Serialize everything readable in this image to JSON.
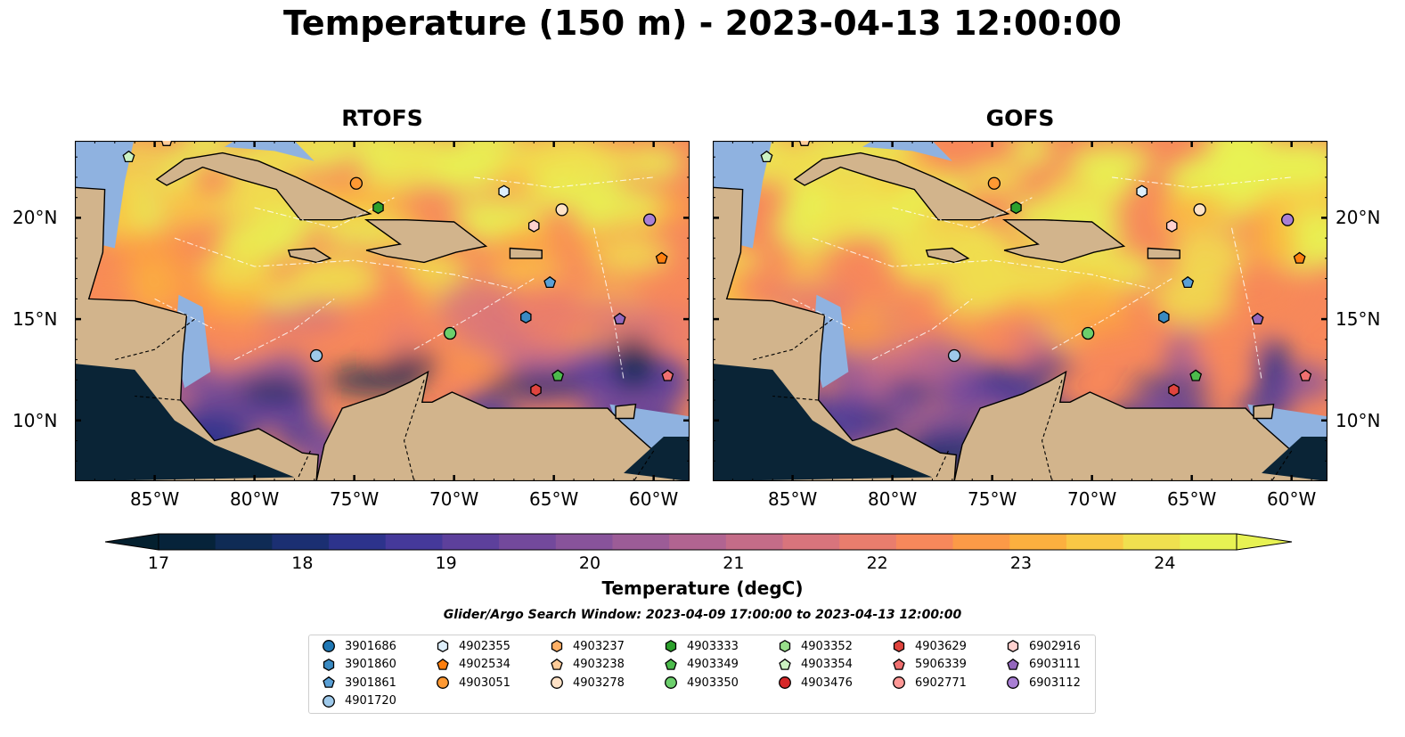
{
  "title": "Temperature (150 m) - 2023-04-13 12:00:00",
  "panels": [
    {
      "id": "rtofs",
      "title": "RTOFS",
      "tint": 0.0
    },
    {
      "id": "gofs",
      "title": "GOFS",
      "tint": 0.35
    }
  ],
  "lon_ticks": [
    "85°W",
    "80°W",
    "75°W",
    "70°W",
    "65°W",
    "60°W"
  ],
  "lon_tick_values": [
    -85,
    -80,
    -75,
    -70,
    -65,
    -60
  ],
  "lat_ticks": [
    "20°N",
    "15°N",
    "10°N"
  ],
  "lat_tick_values": [
    20,
    15,
    10
  ],
  "extent": {
    "lon_min": -89,
    "lon_max": -58.2,
    "lat_min": 7.0,
    "lat_max": 23.8
  },
  "colorbar": {
    "label": "Temperature (degC)",
    "ticks": [
      "17",
      "18",
      "19",
      "20",
      "21",
      "22",
      "23",
      "24"
    ],
    "tick_values": [
      17,
      18,
      19,
      20,
      21,
      22,
      23,
      24
    ],
    "vmin": 17,
    "vmax": 24.5,
    "step": 0.5,
    "colors": [
      "#06233a",
      "#0f2b55",
      "#1b2f72",
      "#2d338c",
      "#45399a",
      "#5d409c",
      "#73499c",
      "#88539b",
      "#9c5c97",
      "#b16491",
      "#c46c88",
      "#d8747c",
      "#e97d6d",
      "#f7885b",
      "#fc9a47",
      "#fcb03f",
      "#f9c845",
      "#f0e04f",
      "#e7f253"
    ],
    "under_color": "#04202f",
    "over_color": "#e7f253"
  },
  "search_window": "Glider/Argo Search Window: 2023-04-09 17:00:00 to 2023-04-13 12:00:00",
  "map_colors": {
    "land": "#d2b48c",
    "shelf": "#8fb2e0",
    "coast": "#000000"
  },
  "floats": [
    {
      "id": "3901686",
      "marker": "circle",
      "color": "#1f77b4",
      "lon": null,
      "lat": null
    },
    {
      "id": "3901860",
      "marker": "hexagon",
      "color": "#3a8ac2",
      "lon": -66.4,
      "lat": 15.1
    },
    {
      "id": "3901861",
      "marker": "pentagon",
      "color": "#5aa0d6",
      "lon": -65.2,
      "lat": 16.8
    },
    {
      "id": "4901720",
      "marker": "circle",
      "color": "#9ec9ea",
      "lon": -76.9,
      "lat": 13.2
    },
    {
      "id": "4902355",
      "marker": "hexagon",
      "color": "#ddeefa",
      "lon": -67.5,
      "lat": 21.3
    },
    {
      "id": "4902534",
      "marker": "pentagon",
      "color": "#ff7f0e",
      "lon": -59.6,
      "lat": 18.0
    },
    {
      "id": "4903051",
      "marker": "circle",
      "color": "#ff9933",
      "lon": -74.9,
      "lat": 21.7
    },
    {
      "id": "4903237",
      "marker": "hexagon",
      "color": "#ffb066",
      "lon": null,
      "lat": null
    },
    {
      "id": "4903238",
      "marker": "pentagon",
      "color": "#ffcc99",
      "lon": -84.4,
      "lat": 23.8
    },
    {
      "id": "4903278",
      "marker": "circle",
      "color": "#ffe2c6",
      "lon": -64.6,
      "lat": 20.4
    },
    {
      "id": "4903333",
      "marker": "hexagon",
      "color": "#2ca02c",
      "lon": -73.8,
      "lat": 20.5
    },
    {
      "id": "4903349",
      "marker": "pentagon",
      "color": "#4cbb4c",
      "lon": -64.8,
      "lat": 12.2
    },
    {
      "id": "4903350",
      "marker": "circle",
      "color": "#6ccf6c",
      "lon": -70.2,
      "lat": 14.3
    },
    {
      "id": "4903352",
      "marker": "hexagon",
      "color": "#98df8a",
      "lon": null,
      "lat": null
    },
    {
      "id": "4903354",
      "marker": "pentagon",
      "color": "#ccf2c2",
      "lon": -86.3,
      "lat": 23.0
    },
    {
      "id": "4903476",
      "marker": "circle",
      "color": "#d62728",
      "lon": null,
      "lat": null
    },
    {
      "id": "4903629",
      "marker": "hexagon",
      "color": "#e0443e",
      "lon": -65.9,
      "lat": 11.5
    },
    {
      "id": "5906339",
      "marker": "pentagon",
      "color": "#f07070",
      "lon": -59.3,
      "lat": 12.2
    },
    {
      "id": "6902771",
      "marker": "circle",
      "color": "#ff9896",
      "lon": null,
      "lat": null
    },
    {
      "id": "6902916",
      "marker": "hexagon",
      "color": "#ffd1cf",
      "lon": -66.0,
      "lat": 19.6
    },
    {
      "id": "6903111",
      "marker": "pentagon",
      "color": "#9467bd",
      "lon": -61.7,
      "lat": 15.0
    },
    {
      "id": "6903112",
      "marker": "circle",
      "color": "#a97fd4",
      "lon": -60.2,
      "lat": 19.9
    }
  ]
}
